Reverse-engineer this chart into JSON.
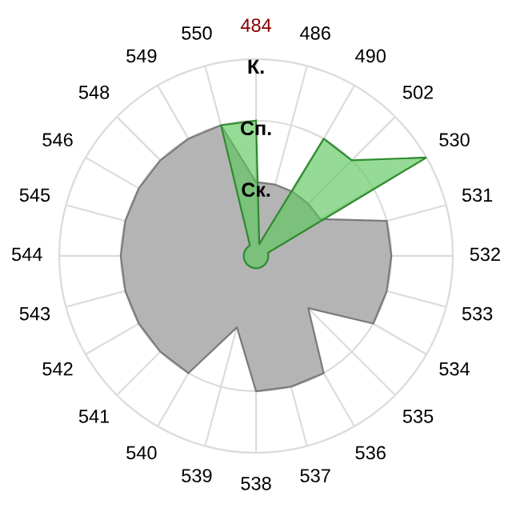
{
  "chart_data": {
    "type": "radar",
    "categories": [
      "484",
      "486",
      "490",
      "502",
      "530",
      "531",
      "532",
      "533",
      "534",
      "535",
      "536",
      "537",
      "538",
      "539",
      "540",
      "541",
      "542",
      "543",
      "544",
      "545",
      "546",
      "548",
      "549",
      "550"
    ],
    "series": [
      {
        "color": "#b4b4b4",
        "values": [
          1,
          1,
          1,
          1,
          1,
          2,
          2,
          2,
          2,
          1,
          2,
          2,
          2,
          1,
          2,
          2,
          2,
          2,
          2,
          2,
          2,
          2,
          2,
          2
        ]
      },
      {
        "color": "#5cc65c",
        "values": [
          2,
          0,
          2,
          2,
          3,
          0,
          0,
          0,
          0,
          0,
          0,
          0,
          0,
          0,
          0,
          0,
          0,
          0,
          0,
          0,
          0,
          0,
          0,
          2
        ]
      }
    ],
    "ylim": [
      -0.2,
      3
    ],
    "yticks": [
      {
        "value": 1,
        "label": "Ск."
      },
      {
        "value": 2,
        "label": "Сп."
      },
      {
        "value": 3,
        "label": "К."
      }
    ],
    "grid": true,
    "legend": false
  }
}
